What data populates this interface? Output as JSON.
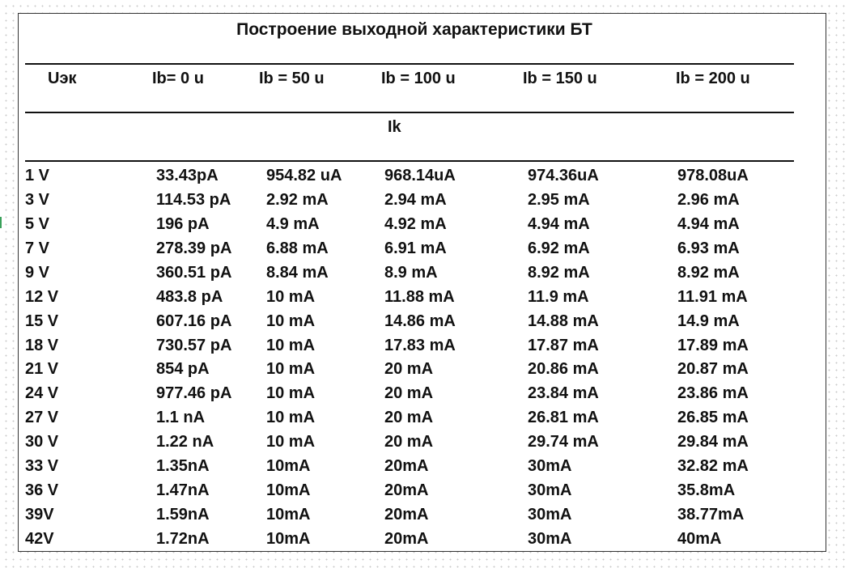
{
  "title": "Построение выходной характеристики БТ",
  "headers": [
    "Uэк",
    "Ib= 0 u",
    "Ib = 50 u",
    "Ib = 100 u",
    "Ib = 150 u",
    "Ib = 200 u"
  ],
  "subheader": "Ik",
  "rows": [
    [
      "1 V",
      "33.43pA",
      "954.82 uA",
      "968.14uA",
      "974.36uA",
      "978.08uA"
    ],
    [
      "3 V",
      "114.53 pA",
      "2.92 mA",
      "2.94 mA",
      "2.95 mA",
      "2.96 mA"
    ],
    [
      "5 V",
      "196 pA",
      "4.9 mA",
      "4.92 mA",
      "4.94 mA",
      "4.94 mA"
    ],
    [
      "7 V",
      "278.39 pA",
      "6.88 mA",
      "6.91 mA",
      "6.92 mA",
      "6.93 mA"
    ],
    [
      "9 V",
      "360.51 pA",
      "8.84 mA",
      "8.9 mA",
      "8.92 mA",
      "8.92 mA"
    ],
    [
      "12 V",
      "483.8 pA",
      "10 mA",
      "11.88 mA",
      "11.9 mA",
      "11.91 mA"
    ],
    [
      "15 V",
      "607.16 pA",
      "10 mA",
      "14.86 mA",
      "14.88 mA",
      "14.9 mA"
    ],
    [
      "18 V",
      "730.57 pA",
      "10 mA",
      "17.83 mA",
      "17.87 mA",
      "17.89 mA"
    ],
    [
      "21 V",
      "854 pA",
      "10 mA",
      "20 mA",
      "20.86 mA",
      "20.87 mA"
    ],
    [
      "24 V",
      "977.46 pA",
      "10 mA",
      "20 mA",
      "23.84 mA",
      "23.86 mA"
    ],
    [
      "27 V",
      "1.1 nA",
      "10 mA",
      "20 mA",
      "26.81 mA",
      "26.85 mA"
    ],
    [
      "30 V",
      "1.22 nA",
      "10 mA",
      "20 mA",
      "29.74 mA",
      "29.84 mA"
    ],
    [
      "33 V",
      "1.35nA",
      "10mA",
      "20mA",
      "30mA",
      "32.82 mA"
    ],
    [
      "36 V",
      "1.47nA",
      "10mA",
      "20mA",
      "30mA",
      "35.8mA"
    ],
    [
      "39V",
      "1.59nA",
      "10mA",
      "20mA",
      "30mA",
      "38.77mA"
    ],
    [
      "42V",
      "1.72nA",
      "10mA",
      "20mA",
      "30mA",
      "40mA"
    ]
  ]
}
